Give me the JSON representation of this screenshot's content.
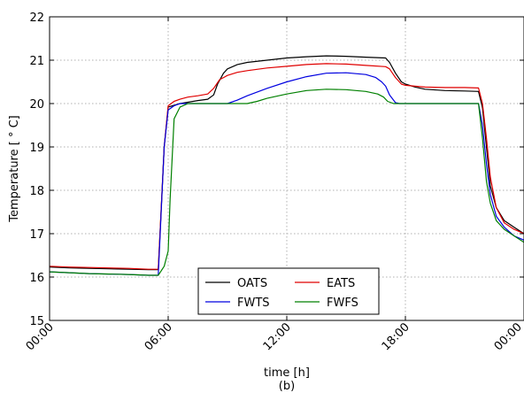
{
  "chart_data": {
    "type": "line",
    "title": "",
    "caption": "(b)",
    "xlabel": "time [h]",
    "ylabel": "Temperature [$^\\circ$C]",
    "ylabel_display": "Temperature [ ° C]",
    "xlim": [
      0,
      24
    ],
    "ylim": [
      15,
      22
    ],
    "x_ticks": [
      0,
      6,
      12,
      18,
      24
    ],
    "x_tick_labels": [
      "00:00",
      "06:00",
      "12:00",
      "18:00",
      "00:00"
    ],
    "y_ticks": [
      15,
      16,
      17,
      18,
      19,
      20,
      21,
      22
    ],
    "y_tick_labels": [
      "15",
      "16",
      "17",
      "18",
      "19",
      "20",
      "21",
      "22"
    ],
    "grid": true,
    "legend_position": "bottom-center",
    "legend_columns": 2,
    "series": [
      {
        "name": "OATS",
        "color": "#000000",
        "points": [
          [
            0,
            16.23
          ],
          [
            1,
            16.21
          ],
          [
            2,
            16.2
          ],
          [
            3,
            16.19
          ],
          [
            4,
            16.18
          ],
          [
            5,
            16.17
          ],
          [
            5.5,
            16.17
          ],
          [
            5.8,
            19.0
          ],
          [
            6.0,
            19.92
          ],
          [
            6.3,
            19.96
          ],
          [
            6.6,
            20.0
          ],
          [
            7,
            20.03
          ],
          [
            7.5,
            20.07
          ],
          [
            8,
            20.1
          ],
          [
            8.3,
            20.2
          ],
          [
            8.5,
            20.45
          ],
          [
            8.8,
            20.7
          ],
          [
            9,
            20.8
          ],
          [
            9.5,
            20.9
          ],
          [
            10,
            20.95
          ],
          [
            11,
            21.0
          ],
          [
            12,
            21.05
          ],
          [
            13,
            21.08
          ],
          [
            14,
            21.1
          ],
          [
            15,
            21.09
          ],
          [
            16,
            21.07
          ],
          [
            17,
            21.05
          ],
          [
            17.2,
            20.95
          ],
          [
            17.5,
            20.7
          ],
          [
            17.8,
            20.5
          ],
          [
            18,
            20.45
          ],
          [
            18.5,
            20.38
          ],
          [
            19,
            20.33
          ],
          [
            20,
            20.3
          ],
          [
            21,
            20.29
          ],
          [
            21.7,
            20.28
          ],
          [
            21.9,
            19.9
          ],
          [
            22.1,
            19.0
          ],
          [
            22.3,
            18.1
          ],
          [
            22.6,
            17.6
          ],
          [
            23,
            17.3
          ],
          [
            23.5,
            17.15
          ],
          [
            24,
            17.0
          ]
        ]
      },
      {
        "name": "EATS",
        "color": "#e00000",
        "points": [
          [
            0,
            16.25
          ],
          [
            1,
            16.23
          ],
          [
            2,
            16.22
          ],
          [
            3,
            16.21
          ],
          [
            4,
            16.2
          ],
          [
            5,
            16.18
          ],
          [
            5.5,
            16.18
          ],
          [
            5.8,
            19.0
          ],
          [
            6.0,
            19.95
          ],
          [
            6.3,
            20.05
          ],
          [
            6.6,
            20.1
          ],
          [
            7,
            20.15
          ],
          [
            7.5,
            20.18
          ],
          [
            8,
            20.22
          ],
          [
            8.3,
            20.35
          ],
          [
            8.6,
            20.55
          ],
          [
            9,
            20.65
          ],
          [
            9.5,
            20.72
          ],
          [
            10,
            20.76
          ],
          [
            11,
            20.82
          ],
          [
            12,
            20.86
          ],
          [
            13,
            20.9
          ],
          [
            14,
            20.92
          ],
          [
            15,
            20.91
          ],
          [
            16,
            20.88
          ],
          [
            17,
            20.85
          ],
          [
            17.2,
            20.8
          ],
          [
            17.5,
            20.6
          ],
          [
            17.8,
            20.45
          ],
          [
            18,
            20.42
          ],
          [
            18.5,
            20.4
          ],
          [
            19,
            20.38
          ],
          [
            20,
            20.37
          ],
          [
            21,
            20.37
          ],
          [
            21.7,
            20.36
          ],
          [
            21.9,
            20.0
          ],
          [
            22.1,
            19.2
          ],
          [
            22.3,
            18.3
          ],
          [
            22.6,
            17.6
          ],
          [
            23,
            17.25
          ],
          [
            23.5,
            17.1
          ],
          [
            24,
            17.0
          ]
        ]
      },
      {
        "name": "FWTS",
        "color": "#0000e0",
        "points": [
          [
            0,
            16.12
          ],
          [
            1,
            16.1
          ],
          [
            2,
            16.08
          ],
          [
            3,
            16.07
          ],
          [
            4,
            16.06
          ],
          [
            5,
            16.04
          ],
          [
            5.5,
            16.04
          ],
          [
            5.8,
            19.0
          ],
          [
            6.0,
            19.85
          ],
          [
            6.3,
            19.95
          ],
          [
            6.6,
            20.0
          ],
          [
            7,
            20.0
          ],
          [
            8,
            20.0
          ],
          [
            9,
            20.0
          ],
          [
            9.5,
            20.08
          ],
          [
            10,
            20.18
          ],
          [
            11,
            20.35
          ],
          [
            12,
            20.5
          ],
          [
            13,
            20.62
          ],
          [
            14,
            20.7
          ],
          [
            15,
            20.71
          ],
          [
            16,
            20.67
          ],
          [
            16.5,
            20.6
          ],
          [
            16.8,
            20.5
          ],
          [
            17,
            20.4
          ],
          [
            17.2,
            20.2
          ],
          [
            17.5,
            20.02
          ],
          [
            17.7,
            20.0
          ],
          [
            18,
            20.0
          ],
          [
            19,
            20.0
          ],
          [
            20,
            20.0
          ],
          [
            21,
            20.0
          ],
          [
            21.7,
            20.0
          ],
          [
            21.9,
            19.5
          ],
          [
            22.1,
            18.6
          ],
          [
            22.3,
            17.9
          ],
          [
            22.6,
            17.4
          ],
          [
            23,
            17.15
          ],
          [
            23.5,
            16.95
          ],
          [
            24,
            16.85
          ]
        ]
      },
      {
        "name": "FWFS",
        "color": "#008000",
        "points": [
          [
            0,
            16.12
          ],
          [
            1,
            16.1
          ],
          [
            2,
            16.08
          ],
          [
            3,
            16.07
          ],
          [
            4,
            16.06
          ],
          [
            5,
            16.04
          ],
          [
            5.5,
            16.04
          ],
          [
            5.8,
            16.25
          ],
          [
            6.0,
            16.6
          ],
          [
            6.1,
            17.8
          ],
          [
            6.3,
            19.65
          ],
          [
            6.6,
            19.92
          ],
          [
            7,
            20.0
          ],
          [
            8,
            20.0
          ],
          [
            9,
            20.0
          ],
          [
            10,
            20.0
          ],
          [
            10.5,
            20.05
          ],
          [
            11,
            20.12
          ],
          [
            12,
            20.22
          ],
          [
            13,
            20.3
          ],
          [
            14,
            20.33
          ],
          [
            15,
            20.32
          ],
          [
            16,
            20.28
          ],
          [
            16.6,
            20.22
          ],
          [
            16.9,
            20.15
          ],
          [
            17.1,
            20.05
          ],
          [
            17.4,
            20.0
          ],
          [
            18,
            20.0
          ],
          [
            19,
            20.0
          ],
          [
            20,
            20.0
          ],
          [
            21,
            20.0
          ],
          [
            21.7,
            20.0
          ],
          [
            21.9,
            19.2
          ],
          [
            22.1,
            18.2
          ],
          [
            22.3,
            17.7
          ],
          [
            22.6,
            17.3
          ],
          [
            23,
            17.1
          ],
          [
            23.5,
            16.95
          ],
          [
            24,
            16.8
          ]
        ]
      }
    ]
  }
}
